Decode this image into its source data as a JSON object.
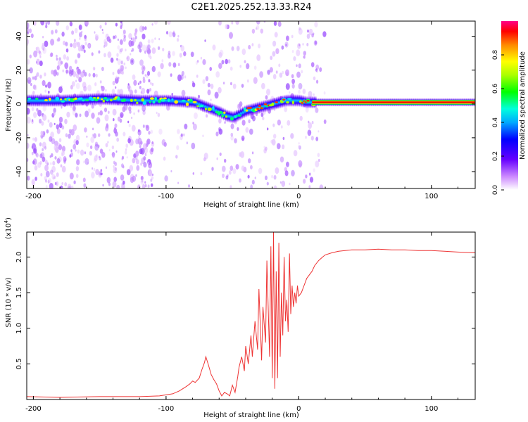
{
  "title": "C2E1.2025.252.13.33.R24",
  "colors": {
    "axis": "#000000",
    "snr_line": "#ee3333",
    "background": "#ffffff"
  },
  "chart_data": [
    {
      "type": "heatmap",
      "name": "spectrogram",
      "xlabel": "Height of straight line (km)",
      "ylabel": "Frequency (Hz)",
      "xlim": [
        -205,
        133
      ],
      "ylim": [
        -50,
        49
      ],
      "x_ticks": [
        -200,
        -100,
        0,
        100
      ],
      "x_tick_labels": [
        "-200",
        "-100",
        "0",
        "100"
      ],
      "y_ticks": [
        -40,
        -20,
        0,
        20,
        40
      ],
      "y_tick_labels": [
        "-40",
        "-20",
        "0",
        "20",
        "40"
      ],
      "frequency_track": {
        "x": [
          -205,
          -180,
          -150,
          -120,
          -100,
          -80,
          -70,
          -60,
          -55,
          -50,
          -45,
          -40,
          -35,
          -30,
          -25,
          -20,
          -15,
          -10,
          -5,
          0,
          5,
          10,
          133
        ],
        "y": [
          2,
          2,
          3,
          2,
          2,
          1,
          -2,
          -5,
          -7,
          -8,
          -6,
          -4,
          -3,
          -2,
          -1,
          0,
          1,
          2,
          2,
          2,
          1,
          1,
          1
        ]
      },
      "colorbar": {
        "label": "Normalized spectral amplitude",
        "range": [
          0.0,
          1.0
        ],
        "ticks": [
          0.0,
          0.2,
          0.4,
          0.6,
          0.8
        ],
        "tick_labels": [
          "0.0",
          "0.2",
          "0.4",
          "0.6",
          "0.8"
        ]
      }
    },
    {
      "type": "line",
      "name": "snr",
      "xlabel": "Height of straight line (km)",
      "ylabel": "SNR (10 * v/v)",
      "y_multiplier": "(x10",
      "y_multiplier_exponent": "4",
      "y_multiplier_close": ")",
      "xlim": [
        -205,
        133
      ],
      "ylim": [
        0,
        2.35
      ],
      "x_ticks": [
        -200,
        -100,
        0,
        100
      ],
      "x_tick_labels": [
        "-200",
        "-100",
        "0",
        "100"
      ],
      "y_ticks": [
        0.5,
        1.0,
        1.5,
        2.0
      ],
      "y_tick_labels": [
        "0.5",
        "1.0",
        "1.5",
        "2.0"
      ],
      "series": [
        {
          "name": "SNR",
          "x": [
            -205,
            -180,
            -150,
            -120,
            -105,
            -95,
            -90,
            -85,
            -82,
            -80,
            -78,
            -75,
            -73,
            -71,
            -70,
            -68,
            -66,
            -64,
            -62,
            -60,
            -58,
            -56,
            -54,
            -52,
            -50,
            -48,
            -46,
            -45,
            -43,
            -41,
            -40,
            -38,
            -36,
            -35,
            -33,
            -31,
            -30,
            -28,
            -27,
            -25,
            -24,
            -22,
            -21,
            -20,
            -19,
            -18,
            -17,
            -16,
            -15,
            -14,
            -13,
            -12,
            -11,
            -10,
            -9,
            -8,
            -7,
            -6,
            -5,
            -4,
            -3,
            -2,
            -1,
            0,
            2,
            4,
            6,
            8,
            10,
            12,
            15,
            18,
            20,
            25,
            30,
            35,
            40,
            45,
            50,
            60,
            70,
            80,
            90,
            100,
            110,
            120,
            133
          ],
          "y": [
            0.04,
            0.03,
            0.04,
            0.04,
            0.05,
            0.08,
            0.12,
            0.18,
            0.22,
            0.26,
            0.24,
            0.3,
            0.42,
            0.52,
            0.6,
            0.48,
            0.35,
            0.28,
            0.22,
            0.12,
            0.05,
            0.1,
            0.08,
            0.05,
            0.2,
            0.1,
            0.32,
            0.45,
            0.6,
            0.4,
            0.75,
            0.5,
            0.9,
            0.6,
            1.1,
            0.7,
            1.55,
            0.55,
            1.3,
            0.8,
            1.95,
            0.6,
            2.15,
            0.3,
            2.35,
            0.15,
            1.8,
            0.3,
            2.2,
            0.6,
            1.5,
            0.9,
            2.0,
            1.1,
            1.4,
            0.95,
            2.05,
            1.2,
            1.6,
            1.3,
            1.5,
            1.35,
            1.6,
            1.45,
            1.5,
            1.6,
            1.7,
            1.75,
            1.8,
            1.88,
            1.95,
            2.0,
            2.03,
            2.06,
            2.08,
            2.09,
            2.1,
            2.1,
            2.1,
            2.11,
            2.1,
            2.1,
            2.09,
            2.09,
            2.08,
            2.07,
            2.06
          ]
        }
      ]
    }
  ]
}
